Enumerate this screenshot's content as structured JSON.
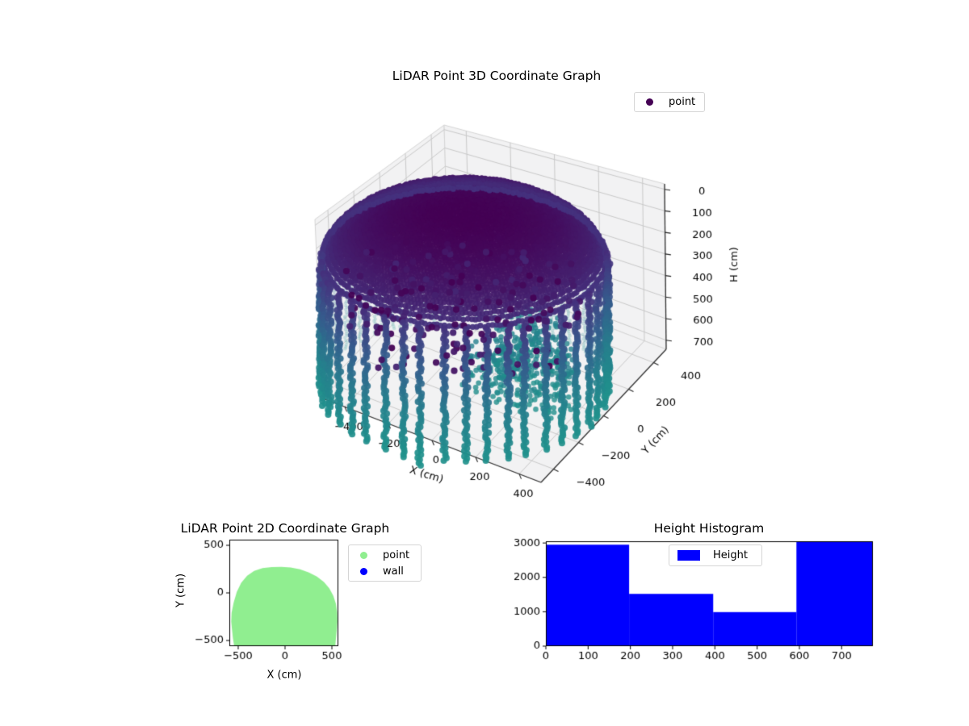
{
  "figure": {
    "background": "#ffffff"
  },
  "chart_data": [
    {
      "type": "scatter3d",
      "title": "LiDAR Point 3D Coordinate Graph",
      "xlabel": "X (cm)",
      "ylabel": "Y (cm)",
      "zlabel": "H (cm)",
      "x_ticks": [
        -400,
        -200,
        0,
        200,
        400
      ],
      "y_ticks": [
        -400,
        -200,
        0,
        200,
        400
      ],
      "h_ticks": [
        0,
        100,
        200,
        300,
        400,
        500,
        600,
        700
      ],
      "xlim": [
        -500,
        500
      ],
      "ylim": [
        -500,
        500
      ],
      "hlim": [
        -25,
        742
      ],
      "h_axis_inverted": true,
      "legend": [
        {
          "label": "point",
          "color": "#440154"
        }
      ],
      "cloud": {
        "shape": "cylinder-room-scan",
        "radius_cm": 540,
        "height_cm": 740,
        "cap_height_cm": 220,
        "n_wall_columns": 42,
        "wall_point_step_cm": 10.5,
        "colormap": "viridis",
        "viridis_stops": [
          "#440154",
          "#46327e",
          "#365c8d",
          "#277f8e",
          "#21918c"
        ],
        "far_side_mix": "#ffffff",
        "n_scatter_dark_dots": 175,
        "n_floor_patch_dots": 460,
        "pane_color": "#f2f2f3",
        "grid_color": "#c9c9c9",
        "spine_color": "#333333"
      }
    },
    {
      "type": "scatter",
      "title": "LiDAR Point 2D Coordinate Graph",
      "xlabel": "X (cm)",
      "ylabel": "Y (cm)",
      "x_ticks": [
        -500,
        0,
        500
      ],
      "y_ticks": [
        -500,
        0,
        500
      ],
      "xlim": [
        -595,
        570
      ],
      "ylim": [
        -560,
        560
      ],
      "legend": [
        {
          "label": "point",
          "color": "#90ee90"
        },
        {
          "label": "wall",
          "color": "#0000ff"
        }
      ],
      "blob_color": "#90ee90",
      "blob_outline": [
        [
          -543,
          -560
        ],
        [
          -557,
          -470
        ],
        [
          -567,
          -380
        ],
        [
          -575,
          -300
        ],
        [
          -571,
          -210
        ],
        [
          -548,
          -100
        ],
        [
          -515,
          10
        ],
        [
          -468,
          105
        ],
        [
          -405,
          180
        ],
        [
          -330,
          230
        ],
        [
          -240,
          260
        ],
        [
          -140,
          272
        ],
        [
          -40,
          274
        ],
        [
          60,
          268
        ],
        [
          160,
          248
        ],
        [
          255,
          215
        ],
        [
          340,
          172
        ],
        [
          415,
          115
        ],
        [
          472,
          48
        ],
        [
          515,
          -30
        ],
        [
          543,
          -115
        ],
        [
          556,
          -205
        ],
        [
          558,
          -300
        ],
        [
          551,
          -400
        ],
        [
          543,
          -480
        ],
        [
          536,
          -560
        ]
      ]
    },
    {
      "type": "bar",
      "title": "Height Histogram",
      "legend": [
        {
          "label": "Height",
          "color": "#0000ff"
        }
      ],
      "bar_color": "#0000ff",
      "bin_edges": [
        0,
        197,
        396,
        593,
        774
      ],
      "counts": [
        2950,
        1520,
        990,
        3050
      ],
      "x_ticks": [
        0,
        100,
        200,
        300,
        400,
        500,
        600,
        700
      ],
      "y_ticks": [
        0,
        1000,
        2000,
        3000
      ],
      "xlim": [
        0,
        774
      ],
      "ylim": [
        0,
        3050
      ]
    }
  ]
}
